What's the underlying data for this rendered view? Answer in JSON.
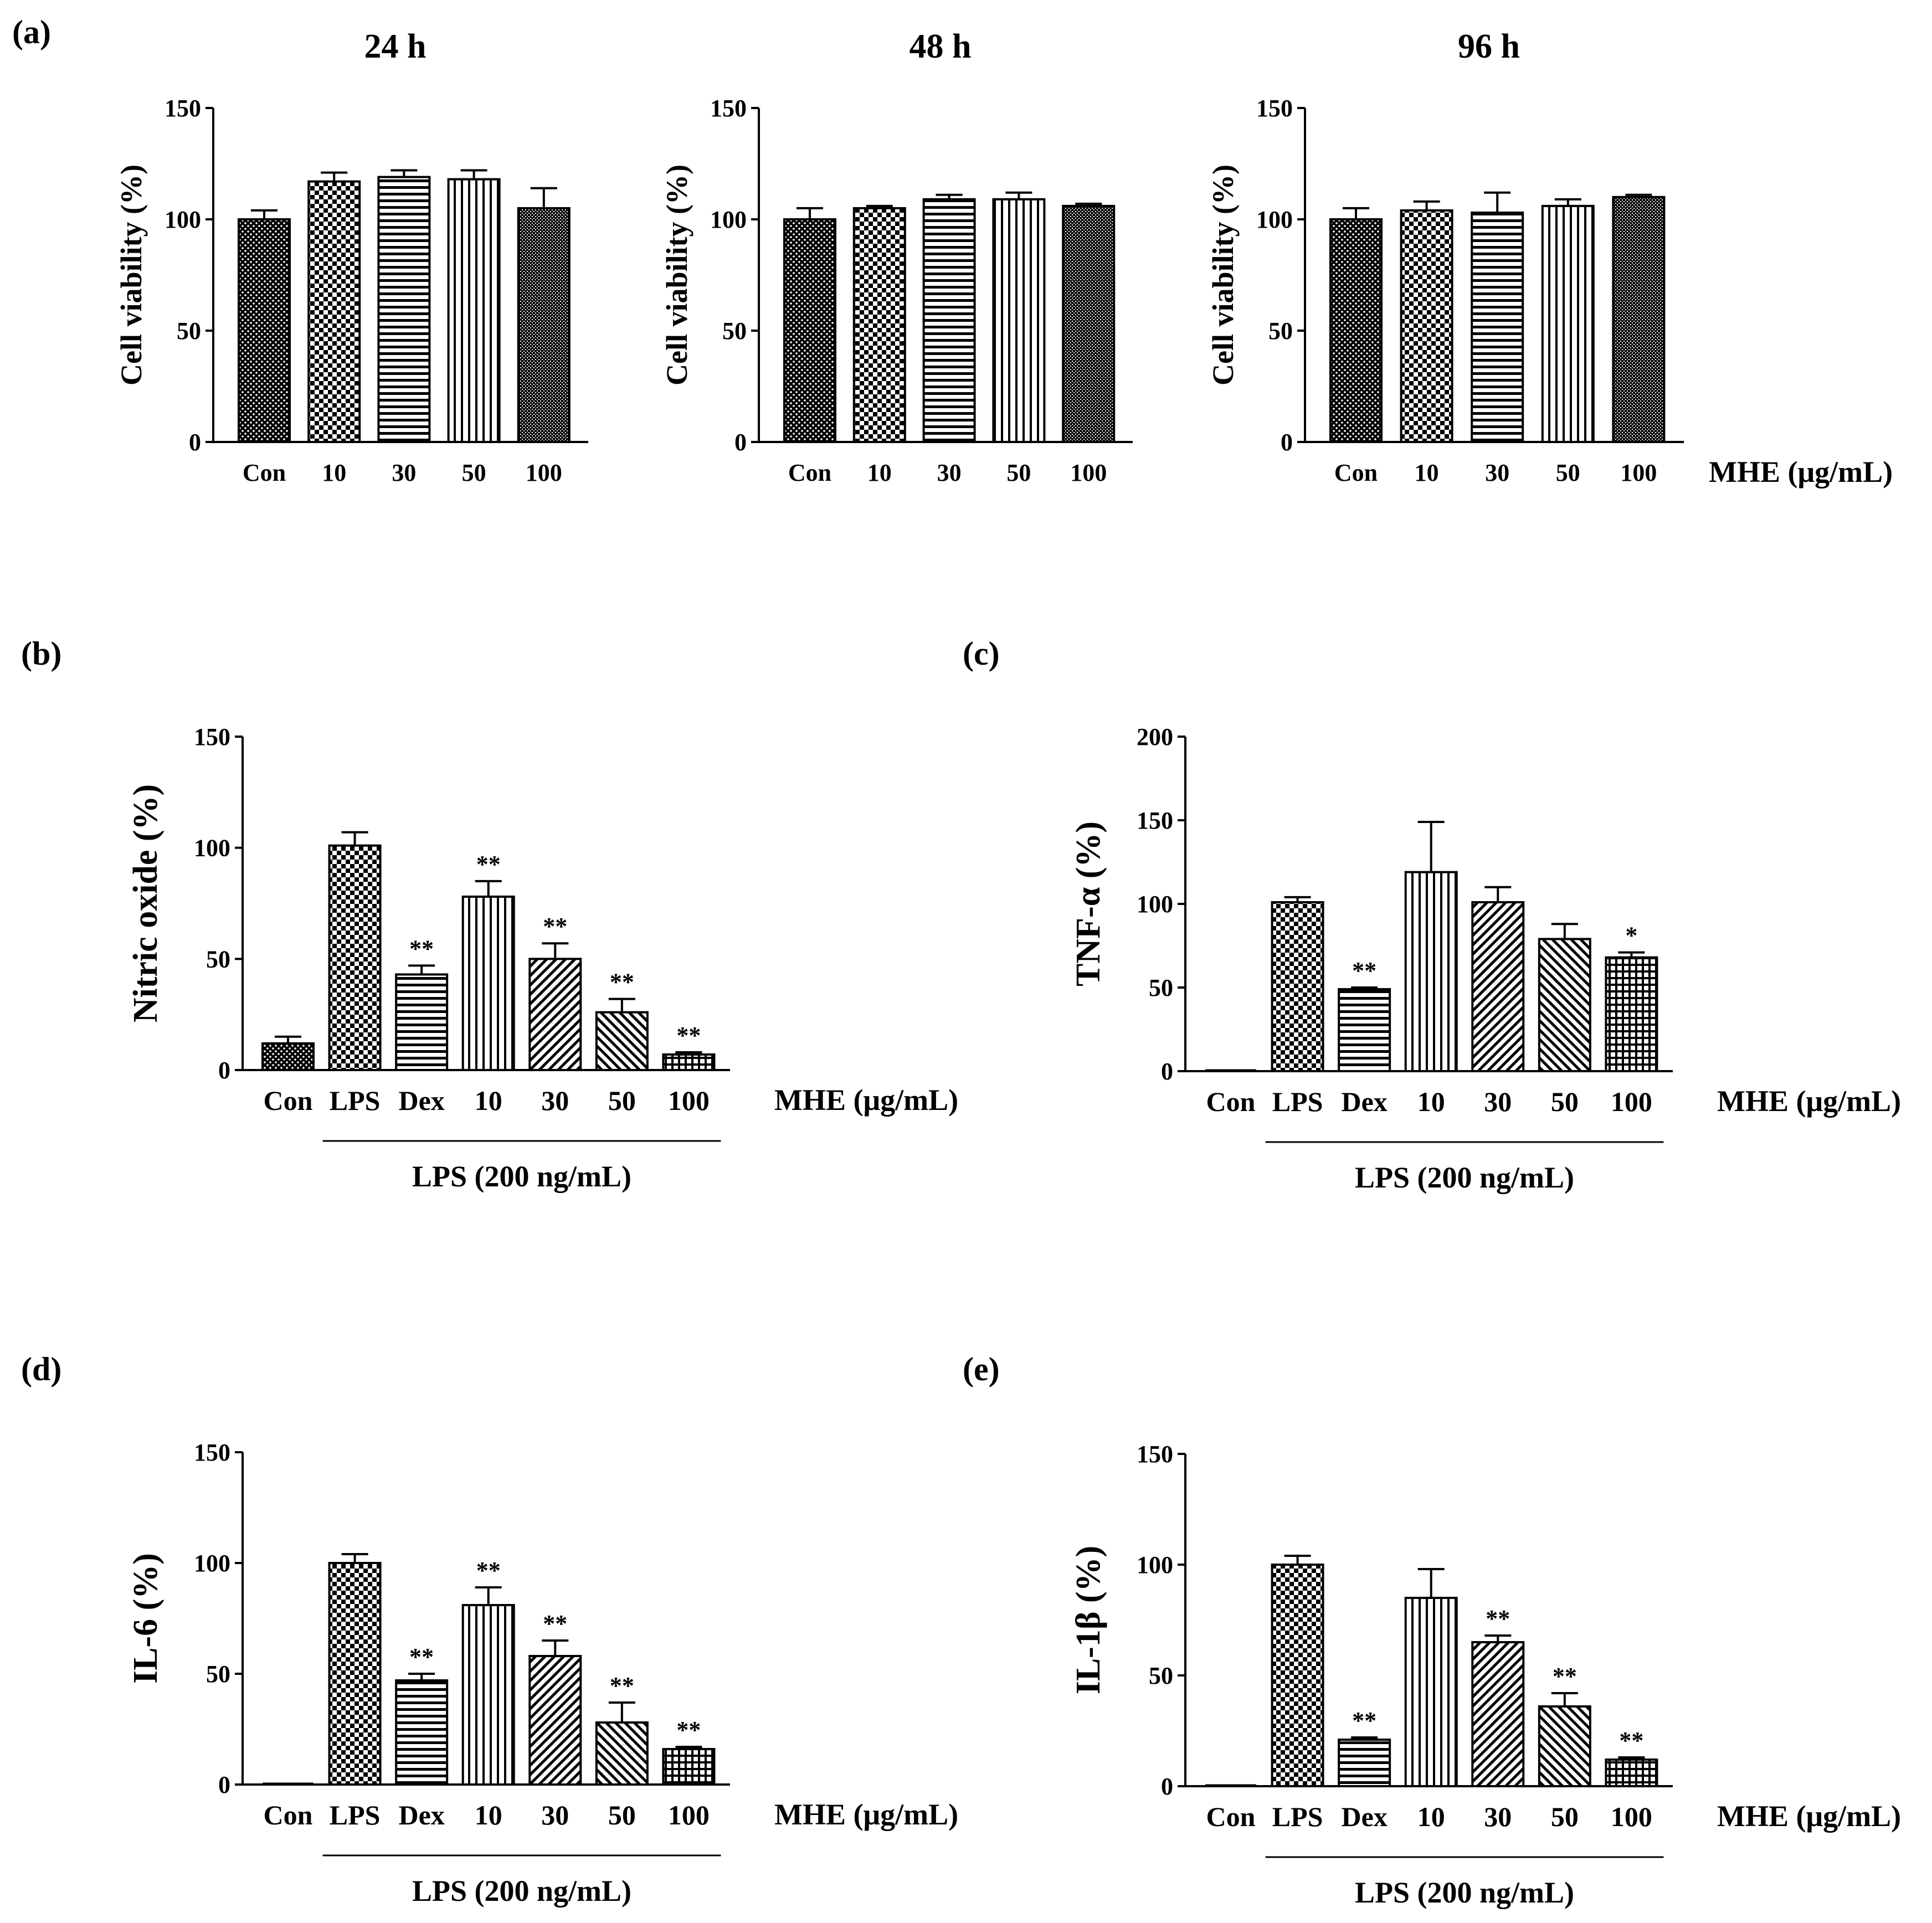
{
  "figure": {
    "panel_labels": [
      "(a)",
      "(b)",
      "(c)",
      "(d)",
      "(e)"
    ],
    "mhe_unit_label": "MHE (μg/mL)",
    "lps_group_label": "LPS (200 ng/mL)"
  },
  "chart_data": [
    {
      "id": "a-24h",
      "panel": "(a)",
      "type": "bar",
      "title": "24 h",
      "xlabel": "",
      "ylabel": "Cell viability (%)",
      "ylim": [
        0,
        150
      ],
      "yticks": [
        0,
        50,
        100,
        150
      ],
      "categories": [
        "Con",
        "10",
        "30",
        "50",
        "100"
      ],
      "values": [
        100,
        117,
        119,
        118,
        105
      ],
      "errors": [
        4,
        4,
        3,
        4,
        9
      ],
      "annotations": [
        "",
        "",
        "",
        "",
        ""
      ],
      "patterns": [
        "dots",
        "checker",
        "hlines",
        "vlines",
        "fine"
      ]
    },
    {
      "id": "a-48h",
      "panel": "(a)",
      "type": "bar",
      "title": "48 h",
      "xlabel": "",
      "ylabel": "Cell viability (%)",
      "ylim": [
        0,
        150
      ],
      "yticks": [
        0,
        50,
        100,
        150
      ],
      "categories": [
        "Con",
        "10",
        "30",
        "50",
        "100"
      ],
      "values": [
        100,
        105,
        109,
        109,
        106
      ],
      "errors": [
        5,
        1,
        2,
        3,
        1
      ],
      "annotations": [
        "",
        "",
        "",
        "",
        ""
      ],
      "patterns": [
        "dots",
        "checker",
        "hlines",
        "vlines",
        "fine"
      ]
    },
    {
      "id": "a-96h",
      "panel": "(a)",
      "type": "bar",
      "title": "96 h",
      "xlabel": "MHE (μg/mL)",
      "ylabel": "Cell viability (%)",
      "ylim": [
        0,
        150
      ],
      "yticks": [
        0,
        50,
        100,
        150
      ],
      "categories": [
        "Con",
        "10",
        "30",
        "50",
        "100"
      ],
      "values": [
        100,
        104,
        103,
        106,
        110
      ],
      "errors": [
        5,
        4,
        9,
        3,
        1
      ],
      "annotations": [
        "",
        "",
        "",
        "",
        ""
      ],
      "patterns": [
        "dots",
        "checker",
        "hlines",
        "vlines",
        "fine"
      ]
    },
    {
      "id": "b-no",
      "panel": "(b)",
      "type": "bar",
      "title": "",
      "xlabel": "MHE (μg/mL)",
      "ylabel": "Nitric oxide (%)",
      "ylim": [
        0,
        150
      ],
      "yticks": [
        0,
        50,
        100,
        150
      ],
      "categories": [
        "Con",
        "LPS",
        "Dex",
        "10",
        "30",
        "50",
        "100"
      ],
      "values": [
        12,
        101,
        43,
        78,
        50,
        26,
        7
      ],
      "errors": [
        3,
        6,
        4,
        7,
        7,
        6,
        1
      ],
      "annotations": [
        "",
        "",
        "**",
        "**",
        "**",
        "**",
        "**"
      ],
      "patterns": [
        "dots",
        "checker",
        "hlines",
        "vlines",
        "diag",
        "diag2",
        "grid"
      ],
      "group_label": "LPS (200 ng/mL)"
    },
    {
      "id": "c-tnf",
      "panel": "(c)",
      "type": "bar",
      "title": "",
      "xlabel": "MHE (μg/mL)",
      "ylabel": "TNF-α (%)",
      "ylim": [
        0,
        200
      ],
      "yticks": [
        0,
        50,
        100,
        150,
        200
      ],
      "categories": [
        "Con",
        "LPS",
        "Dex",
        "10",
        "30",
        "50",
        "100"
      ],
      "values": [
        0,
        101,
        49,
        119,
        101,
        79,
        68
      ],
      "errors": [
        0,
        3,
        1,
        30,
        9,
        9,
        3
      ],
      "annotations": [
        "",
        "",
        "**",
        "",
        "",
        "",
        "*"
      ],
      "patterns": [
        "dots",
        "checker",
        "hlines",
        "vlines",
        "diag",
        "diag2",
        "grid"
      ],
      "group_label": "LPS (200 ng/mL)"
    },
    {
      "id": "d-il6",
      "panel": "(d)",
      "type": "bar",
      "title": "",
      "xlabel": "MHE (μg/mL)",
      "ylabel": "IL-6 (%)",
      "ylim": [
        0,
        150
      ],
      "yticks": [
        0,
        50,
        100,
        150
      ],
      "categories": [
        "Con",
        "LPS",
        "Dex",
        "10",
        "30",
        "50",
        "100"
      ],
      "values": [
        0,
        100,
        47,
        81,
        58,
        28,
        16
      ],
      "errors": [
        0,
        4,
        3,
        8,
        7,
        9,
        1
      ],
      "annotations": [
        "",
        "",
        "**",
        "**",
        "**",
        "**",
        "**"
      ],
      "patterns": [
        "dots",
        "checker",
        "hlines",
        "vlines",
        "diag",
        "diag2",
        "grid"
      ],
      "group_label": "LPS (200 ng/mL)"
    },
    {
      "id": "e-il1b",
      "panel": "(e)",
      "type": "bar",
      "title": "",
      "xlabel": "MHE (μg/mL)",
      "ylabel": "IL-1β (%)",
      "ylim": [
        0,
        150
      ],
      "yticks": [
        0,
        50,
        100,
        150
      ],
      "categories": [
        "Con",
        "LPS",
        "Dex",
        "10",
        "30",
        "50",
        "100"
      ],
      "values": [
        0,
        100,
        21,
        85,
        65,
        36,
        12
      ],
      "errors": [
        0,
        4,
        1,
        13,
        3,
        6,
        1
      ],
      "annotations": [
        "",
        "",
        "**",
        "",
        "**",
        "**",
        "**"
      ],
      "patterns": [
        "dots",
        "checker",
        "hlines",
        "vlines",
        "diag",
        "diag2",
        "grid"
      ],
      "group_label": "LPS (200 ng/mL)"
    }
  ]
}
